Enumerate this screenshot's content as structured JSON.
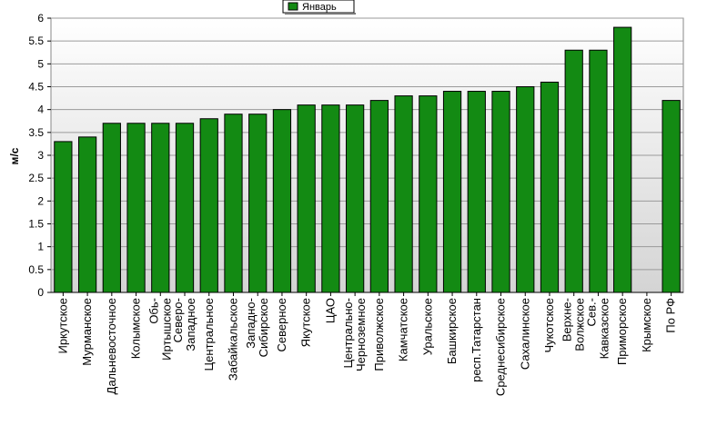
{
  "colors": {
    "bar": "#138a13",
    "bar_stroke": "#000000",
    "plot_bg_top": "#ffffff",
    "plot_bg_bottom": "#d4d4d4",
    "grid": "#9a9a9a"
  },
  "chart_data": {
    "type": "bar",
    "ylabel": "м/с",
    "ylim": [
      0,
      6
    ],
    "yticks": [
      "0",
      "0.5",
      "1",
      "1.5",
      "2",
      "2.5",
      "3",
      "3.5",
      "4",
      "4.5",
      "5",
      "5.5",
      "6"
    ],
    "grid": true,
    "legend_position": "top-center",
    "categories": [
      [
        "Иркутское"
      ],
      [
        "Мурманское"
      ],
      [
        "Дальневосточное"
      ],
      [
        "Колымское"
      ],
      [
        "Обь-",
        "Иртышское"
      ],
      [
        "Северо-",
        "Западное"
      ],
      [
        "Центральное"
      ],
      [
        "Забайкальское"
      ],
      [
        "Западно-",
        "Сибирское"
      ],
      [
        "Северное"
      ],
      [
        "Якутское"
      ],
      [
        "ЦАО"
      ],
      [
        "Центрально-",
        "Черноземное"
      ],
      [
        "Приволжское"
      ],
      [
        "Камчатское"
      ],
      [
        "Уральское"
      ],
      [
        "Башкирское"
      ],
      [
        "респ.Татарстан"
      ],
      [
        "Среднесибирское"
      ],
      [
        "Сахалинское"
      ],
      [
        "Чукотское"
      ],
      [
        "Верхне-",
        "Волжское"
      ],
      [
        "Сев.-",
        "Кавказское"
      ],
      [
        "Приморское"
      ],
      [
        "Крымское"
      ],
      [
        "По РФ"
      ]
    ],
    "series": [
      {
        "name": "Январь",
        "values": [
          3.3,
          3.4,
          3.7,
          3.7,
          3.7,
          3.7,
          3.8,
          3.9,
          3.9,
          4.0,
          4.1,
          4.1,
          4.1,
          4.2,
          4.3,
          4.3,
          4.4,
          4.4,
          4.4,
          4.5,
          4.6,
          5.3,
          5.3,
          5.8,
          null,
          4.2
        ]
      }
    ]
  }
}
